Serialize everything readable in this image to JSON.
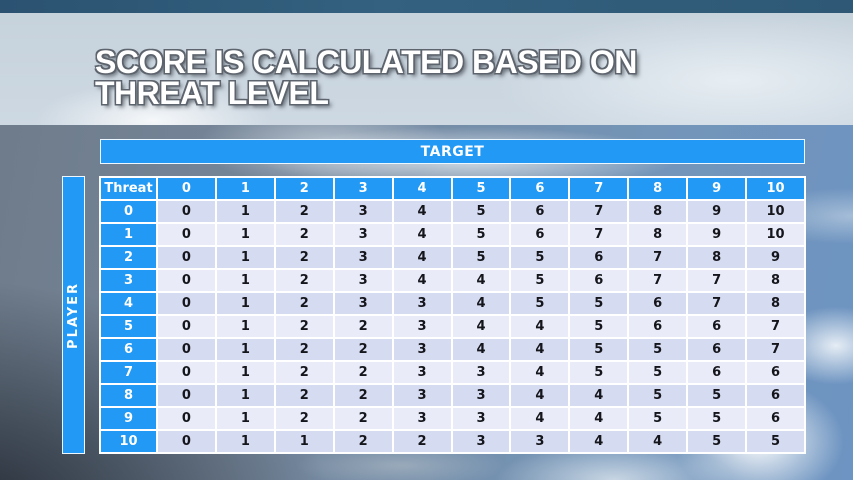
{
  "title": {
    "line1": "SCORE IS CALCULATED BASED ON",
    "line2": "THREAT LEVEL"
  },
  "matrix": {
    "target_label": "TARGET",
    "player_label": "PLAYER",
    "corner_label": "Threat",
    "col_headers": [
      "0",
      "1",
      "2",
      "3",
      "4",
      "5",
      "6",
      "7",
      "8",
      "9",
      "10"
    ],
    "rows": [
      {
        "threat": "0",
        "values": [
          "0",
          "1",
          "2",
          "3",
          "4",
          "5",
          "6",
          "7",
          "8",
          "9",
          "10"
        ]
      },
      {
        "threat": "1",
        "values": [
          "0",
          "1",
          "2",
          "3",
          "4",
          "5",
          "6",
          "7",
          "8",
          "9",
          "10"
        ]
      },
      {
        "threat": "2",
        "values": [
          "0",
          "1",
          "2",
          "3",
          "4",
          "5",
          "5",
          "6",
          "7",
          "8",
          "9"
        ]
      },
      {
        "threat": "3",
        "values": [
          "0",
          "1",
          "2",
          "3",
          "4",
          "4",
          "5",
          "6",
          "7",
          "7",
          "8"
        ]
      },
      {
        "threat": "4",
        "values": [
          "0",
          "1",
          "2",
          "3",
          "3",
          "4",
          "5",
          "5",
          "6",
          "7",
          "8"
        ]
      },
      {
        "threat": "5",
        "values": [
          "0",
          "1",
          "2",
          "2",
          "3",
          "4",
          "4",
          "5",
          "6",
          "6",
          "7"
        ]
      },
      {
        "threat": "6",
        "values": [
          "0",
          "1",
          "2",
          "2",
          "3",
          "4",
          "4",
          "5",
          "5",
          "6",
          "7"
        ]
      },
      {
        "threat": "7",
        "values": [
          "0",
          "1",
          "2",
          "2",
          "3",
          "3",
          "4",
          "5",
          "5",
          "6",
          "6"
        ]
      },
      {
        "threat": "8",
        "values": [
          "0",
          "1",
          "2",
          "2",
          "3",
          "3",
          "4",
          "4",
          "5",
          "5",
          "6"
        ]
      },
      {
        "threat": "9",
        "values": [
          "0",
          "1",
          "2",
          "2",
          "3",
          "3",
          "4",
          "4",
          "5",
          "5",
          "6"
        ]
      },
      {
        "threat": "10",
        "values": [
          "0",
          "1",
          "1",
          "2",
          "2",
          "3",
          "3",
          "4",
          "4",
          "5",
          "5"
        ]
      }
    ]
  },
  "colors": {
    "accent_blue": "#2299F4",
    "band_dark": "#D5DBF0",
    "band_light": "#E9ECF8",
    "header_text": "#FFFFFF",
    "body_text": "#15151C",
    "top_strip": "#2E5876",
    "banner": "#CBD6E0"
  }
}
